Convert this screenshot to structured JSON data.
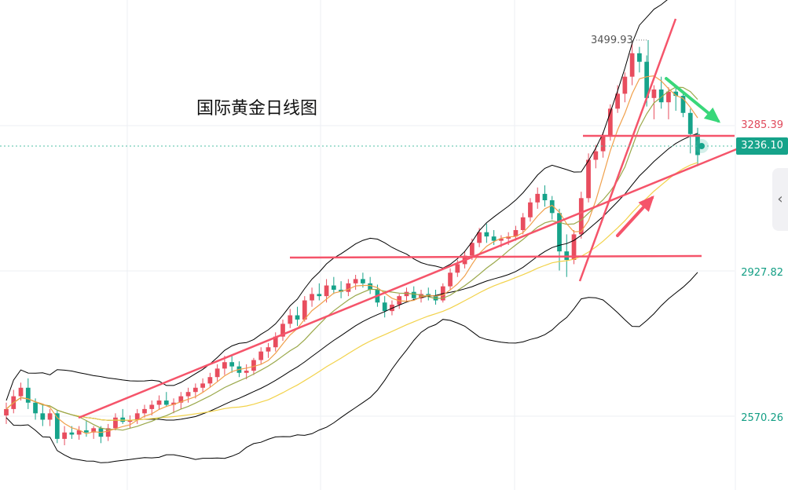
{
  "title": "国际黄金日线图",
  "high_label": "3499.93",
  "last_price": "3236.10",
  "side_handle_icon": "‹",
  "colors": {
    "up": "#e84d5e",
    "down": "#16a38a",
    "ma_fast": "#f0a04b",
    "ma_mid": "#9aa84a",
    "ma_slow": "#f2d24a",
    "band": "#000000",
    "trend": "#f5546a",
    "arrow_down": "#39d77a",
    "arrow_up": "#f5546a",
    "grid": "#eceff3",
    "dotted": "#4fc1a6",
    "red_text": "#e04a5c",
    "green_text": "#129e84"
  },
  "axis": {
    "labels": [
      {
        "text": "3285.39",
        "value": 3285.39,
        "tone": "red"
      },
      {
        "text": "2927.82",
        "value": 2927.82,
        "tone": "green"
      },
      {
        "text": "2570.26",
        "value": 2570.26,
        "tone": "green"
      }
    ]
  },
  "chart_data": {
    "type": "candlestick",
    "title": "国际黄金日线图",
    "ylim": [
      2450,
      3600
    ],
    "high": 3499.93,
    "last": 3236.1,
    "candles": [
      [
        2625,
        2655,
        2605,
        2640
      ],
      [
        2640,
        2685,
        2630,
        2670
      ],
      [
        2670,
        2702,
        2660,
        2690
      ],
      [
        2690,
        2712,
        2640,
        2655
      ],
      [
        2655,
        2665,
        2615,
        2630
      ],
      [
        2630,
        2650,
        2600,
        2615
      ],
      [
        2615,
        2640,
        2600,
        2630
      ],
      [
        2630,
        2636,
        2560,
        2570
      ],
      [
        2570,
        2600,
        2555,
        2585
      ],
      [
        2585,
        2600,
        2570,
        2580
      ],
      [
        2580,
        2600,
        2568,
        2590
      ],
      [
        2590,
        2612,
        2575,
        2585
      ],
      [
        2585,
        2600,
        2570,
        2595
      ],
      [
        2595,
        2600,
        2560,
        2575
      ],
      [
        2575,
        2605,
        2565,
        2595
      ],
      [
        2595,
        2630,
        2590,
        2620
      ],
      [
        2620,
        2640,
        2605,
        2610
      ],
      [
        2610,
        2625,
        2595,
        2615
      ],
      [
        2615,
        2640,
        2605,
        2630
      ],
      [
        2630,
        2650,
        2620,
        2640
      ],
      [
        2640,
        2660,
        2625,
        2650
      ],
      [
        2650,
        2672,
        2638,
        2660
      ],
      [
        2660,
        2680,
        2645,
        2650
      ],
      [
        2650,
        2665,
        2630,
        2655
      ],
      [
        2655,
        2680,
        2640,
        2670
      ],
      [
        2670,
        2690,
        2655,
        2680
      ],
      [
        2680,
        2700,
        2665,
        2690
      ],
      [
        2690,
        2712,
        2680,
        2700
      ],
      [
        2700,
        2725,
        2690,
        2715
      ],
      [
        2715,
        2745,
        2705,
        2735
      ],
      [
        2735,
        2765,
        2720,
        2750
      ],
      [
        2750,
        2765,
        2725,
        2740
      ],
      [
        2740,
        2752,
        2715,
        2725
      ],
      [
        2725,
        2745,
        2710,
        2730
      ],
      [
        2730,
        2760,
        2720,
        2755
      ],
      [
        2755,
        2785,
        2745,
        2775
      ],
      [
        2775,
        2795,
        2760,
        2785
      ],
      [
        2785,
        2820,
        2775,
        2810
      ],
      [
        2810,
        2850,
        2800,
        2840
      ],
      [
        2840,
        2875,
        2830,
        2860
      ],
      [
        2860,
        2880,
        2835,
        2850
      ],
      [
        2850,
        2905,
        2845,
        2895
      ],
      [
        2895,
        2925,
        2880,
        2910
      ],
      [
        2910,
        2935,
        2895,
        2905
      ],
      [
        2905,
        2945,
        2890,
        2930
      ],
      [
        2930,
        2950,
        2910,
        2920
      ],
      [
        2920,
        2940,
        2900,
        2915
      ],
      [
        2915,
        2945,
        2905,
        2935
      ],
      [
        2935,
        2955,
        2920,
        2945
      ],
      [
        2945,
        2960,
        2925,
        2935
      ],
      [
        2935,
        2950,
        2910,
        2920
      ],
      [
        2920,
        2932,
        2880,
        2890
      ],
      [
        2890,
        2905,
        2855,
        2870
      ],
      [
        2870,
        2895,
        2860,
        2885
      ],
      [
        2885,
        2910,
        2875,
        2905
      ],
      [
        2905,
        2925,
        2890,
        2915
      ],
      [
        2915,
        2928,
        2895,
        2900
      ],
      [
        2900,
        2920,
        2890,
        2910
      ],
      [
        2910,
        2925,
        2895,
        2905
      ],
      [
        2905,
        2920,
        2885,
        2895
      ],
      [
        2895,
        2935,
        2890,
        2928
      ],
      [
        2928,
        2970,
        2920,
        2960
      ],
      [
        2960,
        2990,
        2950,
        2980
      ],
      [
        2980,
        3010,
        2970,
        3000
      ],
      [
        3000,
        3040,
        2990,
        3030
      ],
      [
        3030,
        3065,
        3020,
        3055
      ],
      [
        3055,
        3075,
        3030,
        3045
      ],
      [
        3045,
        3060,
        3025,
        3035
      ],
      [
        3035,
        3048,
        3020,
        3040
      ],
      [
        3040,
        3055,
        3025,
        3045
      ],
      [
        3045,
        3070,
        3035,
        3060
      ],
      [
        3060,
        3100,
        3050,
        3090
      ],
      [
        3090,
        3135,
        3080,
        3125
      ],
      [
        3125,
        3160,
        3110,
        3145
      ],
      [
        3145,
        3165,
        3115,
        3130
      ],
      [
        3130,
        3140,
        3085,
        3100
      ],
      [
        3100,
        3110,
        2965,
        3010
      ],
      [
        3010,
        3050,
        2950,
        2990
      ],
      [
        2990,
        3060,
        2980,
        3050
      ],
      [
        3050,
        3150,
        3040,
        3135
      ],
      [
        3135,
        3240,
        3125,
        3225
      ],
      [
        3225,
        3260,
        3205,
        3245
      ],
      [
        3245,
        3290,
        3230,
        3280
      ],
      [
        3280,
        3355,
        3270,
        3345
      ],
      [
        3345,
        3400,
        3335,
        3380
      ],
      [
        3380,
        3430,
        3360,
        3420
      ],
      [
        3420,
        3499.93,
        3400,
        3475
      ],
      [
        3475,
        3490,
        3430,
        3455
      ],
      [
        3455,
        3470,
        3350,
        3370
      ],
      [
        3370,
        3400,
        3320,
        3390
      ],
      [
        3390,
        3420,
        3345,
        3360
      ],
      [
        3360,
        3395,
        3320,
        3385
      ],
      [
        3385,
        3400,
        3340,
        3375
      ],
      [
        3375,
        3385,
        3325,
        3335
      ],
      [
        3335,
        3345,
        3240,
        3285.39
      ],
      [
        3285.39,
        3300,
        3210,
        3236.1
      ]
    ]
  }
}
